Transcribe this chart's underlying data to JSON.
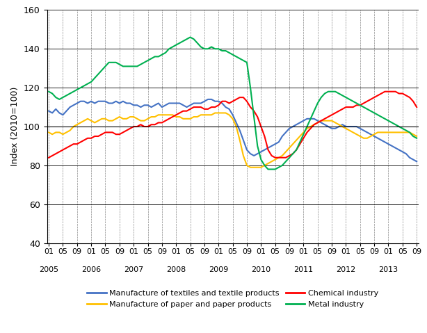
{
  "title": "",
  "ylabel": "Index (2010=100)",
  "ylim": [
    40,
    160
  ],
  "yticks": [
    40,
    60,
    80,
    100,
    120,
    140,
    160
  ],
  "hline": 100,
  "bg_color": "#ffffff",
  "grid_color": "#aaaaaa",
  "series": {
    "textiles": {
      "label": "Manufacture of textiles and textile products",
      "color": "#4472c4",
      "values": [
        108,
        107,
        109,
        107,
        106,
        108,
        110,
        111,
        112,
        113,
        113,
        112,
        113,
        112,
        113,
        113,
        113,
        112,
        112,
        113,
        112,
        113,
        112,
        112,
        111,
        111,
        110,
        111,
        111,
        110,
        111,
        112,
        110,
        111,
        112,
        112,
        112,
        112,
        111,
        110,
        111,
        112,
        112,
        112,
        113,
        114,
        114,
        113,
        113,
        112,
        110,
        109,
        106,
        102,
        98,
        93,
        88,
        86,
        85,
        86,
        87,
        88,
        89,
        90,
        91,
        92,
        95,
        97,
        99,
        100,
        101,
        102,
        103,
        104,
        104,
        104,
        103,
        102,
        101,
        100,
        99,
        99,
        100,
        101,
        100,
        100,
        100,
        100,
        99,
        98,
        97,
        96,
        95,
        94,
        93,
        92,
        91,
        90,
        89,
        88,
        87,
        86,
        84,
        83,
        82
      ]
    },
    "paper": {
      "label": "Manufacture of paper and paper products",
      "color": "#ffc000",
      "values": [
        97,
        96,
        97,
        97,
        96,
        97,
        98,
        100,
        101,
        102,
        103,
        104,
        103,
        102,
        103,
        104,
        104,
        103,
        103,
        104,
        105,
        104,
        104,
        105,
        105,
        104,
        103,
        103,
        104,
        105,
        105,
        106,
        106,
        106,
        106,
        106,
        105,
        105,
        104,
        104,
        104,
        105,
        105,
        106,
        106,
        106,
        106,
        107,
        107,
        107,
        107,
        106,
        104,
        100,
        93,
        85,
        80,
        79,
        79,
        79,
        79,
        80,
        81,
        82,
        83,
        84,
        85,
        87,
        89,
        91,
        93,
        95,
        97,
        99,
        100,
        101,
        102,
        103,
        103,
        103,
        103,
        102,
        101,
        100,
        99,
        98,
        97,
        96,
        95,
        94,
        94,
        95,
        96,
        97,
        97,
        97,
        97,
        97,
        97,
        97,
        97,
        97,
        97,
        96,
        95
      ]
    },
    "chemical": {
      "label": "Chemical industry",
      "color": "#ff0000",
      "values": [
        84,
        85,
        86,
        87,
        88,
        89,
        90,
        91,
        91,
        92,
        93,
        94,
        94,
        95,
        95,
        96,
        97,
        97,
        97,
        96,
        96,
        97,
        98,
        99,
        100,
        100,
        101,
        100,
        100,
        101,
        101,
        102,
        102,
        103,
        104,
        105,
        106,
        107,
        108,
        108,
        109,
        110,
        110,
        110,
        109,
        109,
        110,
        110,
        111,
        113,
        113,
        112,
        113,
        114,
        115,
        115,
        113,
        110,
        108,
        105,
        100,
        95,
        88,
        85,
        84,
        84,
        84,
        84,
        85,
        86,
        88,
        91,
        94,
        97,
        99,
        101,
        102,
        103,
        104,
        105,
        106,
        107,
        108,
        109,
        110,
        110,
        110,
        111,
        111,
        112,
        113,
        114,
        115,
        116,
        117,
        118,
        118,
        118,
        118,
        117,
        117,
        116,
        115,
        113,
        110
      ]
    },
    "metal": {
      "label": "Metal industry",
      "color": "#00b050",
      "values": [
        118,
        117,
        115,
        114,
        115,
        116,
        117,
        118,
        119,
        120,
        121,
        122,
        123,
        125,
        127,
        129,
        131,
        133,
        133,
        133,
        132,
        131,
        131,
        131,
        131,
        131,
        132,
        133,
        134,
        135,
        136,
        136,
        137,
        138,
        140,
        141,
        142,
        143,
        144,
        145,
        146,
        145,
        143,
        141,
        140,
        140,
        141,
        140,
        140,
        139,
        139,
        138,
        137,
        136,
        135,
        134,
        133,
        120,
        105,
        90,
        83,
        80,
        78,
        78,
        78,
        79,
        80,
        82,
        84,
        86,
        88,
        92,
        96,
        100,
        104,
        108,
        112,
        115,
        117,
        118,
        118,
        118,
        117,
        116,
        115,
        114,
        113,
        112,
        111,
        110,
        109,
        108,
        107,
        106,
        105,
        104,
        103,
        102,
        101,
        100,
        99,
        98,
        97,
        95,
        94
      ]
    }
  },
  "year_labels": [
    2005,
    2006,
    2007,
    2008,
    2009,
    2010,
    2011,
    2012,
    2013
  ],
  "legend_items": [
    {
      "label": "Manufacture of textiles and textile products",
      "color": "#4472c4"
    },
    {
      "label": "Manufacture of paper and paper products",
      "color": "#ffc000"
    },
    {
      "label": "Chemical industry",
      "color": "#ff0000"
    },
    {
      "label": "Metal industry",
      "color": "#00b050"
    }
  ]
}
